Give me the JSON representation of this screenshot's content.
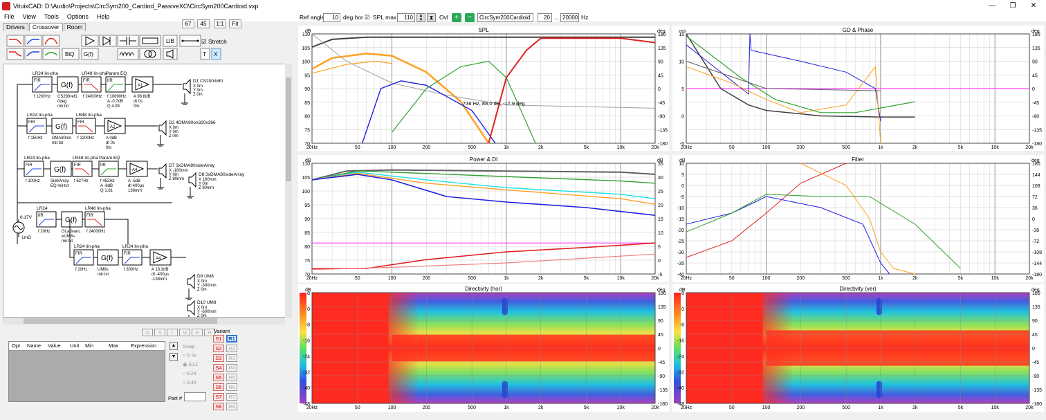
{
  "window": {
    "title": "VituixCAD: D:\\Audio\\Projects\\CircSym200_Cardiod_PassiveXO\\CircSym200Cardioid.vxp",
    "min": "—",
    "max": "❐",
    "close": "✕"
  },
  "menu": [
    "File",
    "View",
    "Tools",
    "Options",
    "Help"
  ],
  "tabs": [
    "Drivers",
    "Crossover",
    "Room"
  ],
  "zoom": [
    "67",
    "45",
    "1:1",
    "Fit"
  ],
  "toolbar": {
    "stretch_label": "Stretch",
    "biq": "BiQ",
    "gf": "G(f)",
    "lib": "LIB",
    "t": "T",
    "x": "X"
  },
  "top_controls": {
    "ref_angle_label": "Ref angle",
    "ref_angle_value": "10",
    "deg_hor": "deg hor",
    "spl_max_label": "SPL max",
    "spl_max_value": "110",
    "ovl": "Ovl",
    "ovl_name": "CircSym200Cardioid",
    "f_low": "20",
    "dots": "...",
    "f_high": "20000",
    "hz": "Hz"
  },
  "schematic": {
    "blocks": [
      {
        "t": "LR24 lin-pha",
        "l": "FIR",
        "v": "f  1200Hz"
      },
      {
        "t": "LR48 lin-pha",
        "l": "FIR",
        "v": "f  24000Hz"
      },
      {
        "t": "Param EQ",
        "l": "IIR",
        "v": "f  10690Hz\nA  -0.7dB\nQ  4.93"
      },
      {
        "t": "LR24 lin-pha",
        "l": "FIR",
        "v": "f  150Hz"
      },
      {
        "t": "LR48 lin-pha",
        "l": "FIR",
        "v": "f  1200Hz"
      },
      {
        "t": "LR24 lin-pha",
        "l": "FIR",
        "v": "f  100Hz"
      },
      {
        "t": "LR48 lin-pha",
        "l": "FIR",
        "v": "f  627Hz"
      },
      {
        "t": "Param EQ",
        "l": "IIR",
        "v": "f  452Hz\nA  -8dB\nQ  1.81"
      },
      {
        "t": "LR24",
        "l": "IIR",
        "v": "f  20Hz"
      },
      {
        "t": "LR48 lin-pha",
        "l": "FIR",
        "v": "f  24000Hz"
      },
      {
        "t": "LR24 lin-pha",
        "l": "FIR",
        "v": "f  20Hz"
      },
      {
        "t": "LR24 lin-pha",
        "l": "FIR",
        "v": "f  300Hz"
      }
    ],
    "gf": [
      {
        "l": "G(f)",
        "v": "CS290ref1\n0deg\nmir.txt"
      },
      {
        "l": "G(f)",
        "v": "DMA80nm\nmir.txt"
      },
      {
        "l": "G(f)",
        "v": "SideArray\nEQ mir.txt"
      },
      {
        "l": "G(f)",
        "v": "GLadvanc\neUM8s\nmir.txt"
      },
      {
        "l": "G(f)",
        "v": "UM8s\nmir.txt"
      }
    ],
    "amps": [
      {
        "l": "A1",
        "v": "A  98.8dB\ndt 0s\n0m"
      },
      {
        "l": "A2",
        "v": "A  0dB\ndt 0s\n0m"
      },
      {
        "l": "A4",
        "v": "A  -5dB\ndt 400µs\n138mm"
      },
      {
        "l": "A4",
        "v": "A  18.3dB\ndt -400µs\n-138mm"
      }
    ],
    "drivers": [
      {
        "n": "D1  CS200rb90",
        "v": "X 0m\nY 0m\nZ 0m"
      },
      {
        "n": "D2  4DMA80on320x366",
        "v": "X 0m\nY 0m\nZ 0m"
      },
      {
        "n": "D7  3xDMA80sideArray",
        "v": "X -160mm\nY 0m\nZ 80mm"
      },
      {
        "n": "D8  3xDMA80sideArray",
        "v": "X 160mm\nY 0m\nZ 80mm"
      },
      {
        "n": "D9  UM8",
        "v": "X 0m\nY -300mm\nZ 0m"
      },
      {
        "n": "D10  UM8",
        "v": "X 0m\nY -600mm\nZ 0m"
      }
    ],
    "source": {
      "v": "6.17V",
      "r": "1mΩ"
    }
  },
  "opt_buttons": [
    "O",
    "S",
    "I",
    "M",
    "R",
    "H"
  ],
  "opt_table": {
    "headers": [
      "Opt",
      "Name",
      "Value",
      "Unit",
      "Min",
      "Max",
      "Expression"
    ]
  },
  "snap": {
    "label": "Snap",
    "options": [
      "5 %",
      "E12",
      "E24",
      "E48"
    ],
    "part_label": "Part #"
  },
  "variant": {
    "label": "Variant",
    "s": [
      "S1",
      "S2",
      "S3",
      "S4",
      "S5",
      "S6",
      "S7",
      "S8"
    ],
    "r": [
      "R1",
      "R2",
      "R3",
      "R4",
      "R5",
      "R6",
      "R7",
      "R8"
    ]
  },
  "freq_ticks": [
    "20Hz",
    "50",
    "100",
    "200",
    "500",
    "1k",
    "2k",
    "5k",
    "10k",
    "20k"
  ],
  "panels": {
    "spl": {
      "title": "SPL",
      "yl": "dB",
      "yr": "deg",
      "left": [
        "110",
        "105",
        "100",
        "95",
        "90",
        "85",
        "80",
        "75",
        "70"
      ],
      "right": [
        "180",
        "135",
        "90",
        "45",
        "0",
        "-45",
        "-90",
        "-135",
        "-180"
      ],
      "cursor": "736 Hz, 88.0 dB, -17.9 deg"
    },
    "gd": {
      "title": "GD & Phase",
      "yl": "ms",
      "yr": "deg",
      "left": [
        "15",
        "10",
        "5",
        "0",
        "-5"
      ],
      "right": [
        "180",
        "135",
        "90",
        "45",
        "0",
        "-45",
        "-90",
        "-135",
        "-180"
      ]
    },
    "power": {
      "title": "Power & DI",
      "yl": "dB",
      "yr": "dB",
      "left": [
        "110",
        "105",
        "100",
        "95",
        "90",
        "85",
        "80",
        "75",
        "70"
      ],
      "right": [
        "35",
        "30",
        "25",
        "20",
        "15",
        "10",
        "5",
        "0",
        "-5"
      ]
    },
    "filter": {
      "title": "Filter",
      "yl": "dB",
      "yr": "deg",
      "left": [
        "10",
        "5",
        "0",
        "-5",
        "-10",
        "-15",
        "-20",
        "-25",
        "-30",
        "-35",
        "-40"
      ],
      "right": [
        "180",
        "144",
        "108",
        "72",
        "36",
        "0",
        "-36",
        "-72",
        "-108",
        "-144",
        "-180"
      ]
    },
    "dirh": {
      "title": "Directivity (hor)",
      "yl": "dB",
      "yr": "deg",
      "left": [
        "8",
        "0",
        "-8",
        "-16",
        "-24",
        "-32",
        "-40",
        "-48"
      ],
      "right": [
        "180",
        "135",
        "90",
        "45",
        "0",
        "-45",
        "-90",
        "-135",
        "-180"
      ]
    },
    "dirv": {
      "title": "Directivity (ver)",
      "yl": "dB",
      "yr": "deg",
      "left": [
        "8",
        "0",
        "-8",
        "-16",
        "-24",
        "-32",
        "-40",
        "-48"
      ],
      "right": [
        "180",
        "135",
        "90",
        "45",
        "0",
        "-45",
        "-90",
        "-135",
        "-180"
      ]
    }
  },
  "colors": {
    "grid": "#c8c8c8",
    "red": "#e02020",
    "orange": "#ffa020",
    "blue": "#2020e0",
    "green": "#30a030",
    "gray": "#606060",
    "cyan": "#20e0e0",
    "magenta": "#ff40ff"
  }
}
